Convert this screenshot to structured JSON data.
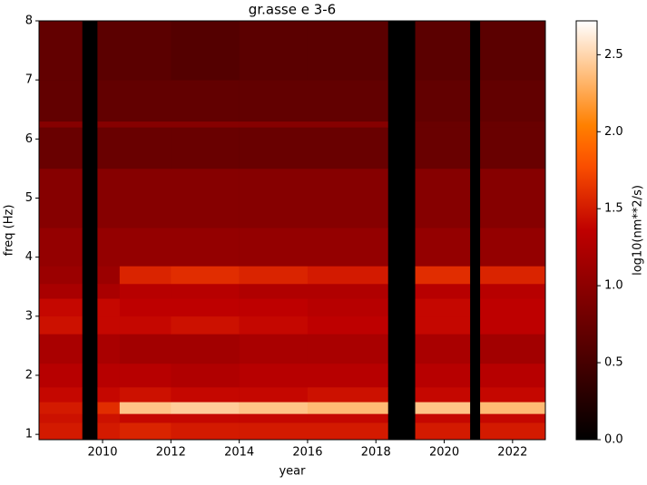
{
  "chart_data": {
    "type": "heatmap",
    "title": "gr.asse e 3-6",
    "xlabel": "year",
    "ylabel": "freq (Hz)",
    "colorbar_label": "log10(nm**2/s)",
    "colormap": "gist_heat",
    "xbins": [
      2008.14,
      2009.4,
      2009.85,
      2010.5,
      2012,
      2014,
      2016,
      2018.35,
      2019.15,
      2020.75,
      2021.05,
      2022.96
    ],
    "ybins": [
      0.91,
      1.2,
      1.35,
      1.55,
      1.8,
      2.2,
      2.7,
      3.0,
      3.3,
      3.55,
      3.85,
      4.5,
      5.5,
      6.2,
      6.3,
      7.0,
      8.0
    ],
    "z": [
      [
        1.5,
        null,
        1.5,
        1.55,
        1.5,
        1.5,
        1.5,
        null,
        1.5,
        null,
        1.5
      ],
      [
        1.45,
        null,
        1.45,
        1.4,
        1.4,
        1.4,
        1.4,
        null,
        1.4,
        null,
        1.4
      ],
      [
        1.5,
        null,
        1.6,
        2.4,
        2.45,
        2.4,
        2.35,
        null,
        2.4,
        null,
        2.35
      ],
      [
        1.4,
        null,
        1.4,
        1.45,
        1.4,
        1.4,
        1.45,
        null,
        1.4,
        null,
        1.4
      ],
      [
        1.3,
        null,
        1.3,
        1.3,
        1.25,
        1.3,
        1.3,
        null,
        1.3,
        null,
        1.3
      ],
      [
        1.2,
        null,
        1.2,
        1.15,
        1.15,
        1.2,
        1.2,
        null,
        1.2,
        null,
        1.15
      ],
      [
        1.45,
        null,
        1.4,
        1.4,
        1.45,
        1.4,
        1.35,
        null,
        1.4,
        null,
        1.35
      ],
      [
        1.4,
        null,
        1.4,
        1.35,
        1.35,
        1.35,
        1.3,
        null,
        1.4,
        null,
        1.35
      ],
      [
        1.2,
        null,
        1.2,
        1.3,
        1.3,
        1.25,
        1.25,
        null,
        1.3,
        null,
        1.3
      ],
      [
        1.1,
        null,
        1.1,
        1.55,
        1.6,
        1.55,
        1.5,
        null,
        1.6,
        null,
        1.55
      ],
      [
        1.05,
        null,
        1.05,
        1.05,
        1.05,
        1.05,
        1.05,
        null,
        1.05,
        null,
        1.05
      ],
      [
        0.95,
        null,
        0.95,
        0.95,
        0.95,
        0.95,
        0.95,
        null,
        0.95,
        null,
        0.95
      ],
      [
        0.75,
        null,
        0.75,
        0.75,
        0.75,
        0.75,
        0.75,
        null,
        0.75,
        null,
        0.75
      ],
      [
        0.95,
        null,
        0.95,
        0.95,
        0.95,
        0.95,
        0.95,
        null,
        0.75,
        null,
        0.75
      ],
      [
        0.7,
        null,
        0.7,
        0.7,
        0.7,
        0.7,
        0.7,
        null,
        0.7,
        null,
        0.7
      ],
      [
        0.7,
        null,
        0.65,
        0.65,
        0.6,
        0.65,
        0.65,
        null,
        0.65,
        null,
        0.65
      ]
    ],
    "xlim": [
      2008.14,
      2022.96
    ],
    "xticks": [
      2010,
      2012,
      2014,
      2016,
      2018,
      2020,
      2022
    ],
    "ylim": [
      0.91,
      8
    ],
    "yticks": [
      1,
      2,
      3,
      4,
      5,
      6,
      7,
      8
    ],
    "clim": [
      0,
      2.72
    ],
    "cticks": [
      {
        "value": 0,
        "label": "0.0"
      },
      {
        "value": 0.5,
        "label": "0.5"
      },
      {
        "value": 1,
        "label": "1.0"
      },
      {
        "value": 1.5,
        "label": "1.5"
      },
      {
        "value": 2,
        "label": "2.0"
      },
      {
        "value": 2.5,
        "label": "2.5"
      }
    ]
  }
}
